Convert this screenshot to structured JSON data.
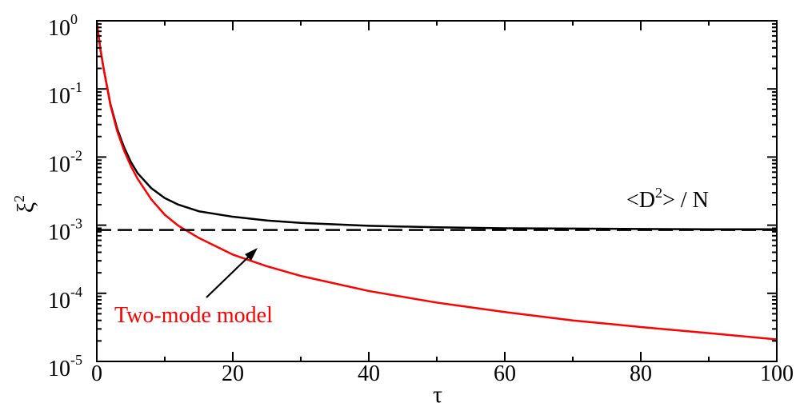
{
  "chart_data": {
    "type": "line",
    "xlabel": "τ",
    "ylabel_base": "ξ",
    "ylabel_sup": "2",
    "xlim": [
      0,
      100
    ],
    "ylim": [
      1e-05,
      1
    ],
    "yscale": "log",
    "grid": false,
    "x_ticks": [
      "0",
      "20",
      "40",
      "60",
      "80",
      "100"
    ],
    "y_ticks": [
      {
        "base": "10",
        "exp": "0"
      },
      {
        "base": "10",
        "exp": "-1"
      },
      {
        "base": "10",
        "exp": "-2"
      },
      {
        "base": "10",
        "exp": "-3"
      },
      {
        "base": "10",
        "exp": "-4"
      },
      {
        "base": "10",
        "exp": "-5"
      }
    ],
    "series": [
      {
        "key": "exact",
        "color": "#000000",
        "style": "solid",
        "x": [
          0,
          0.5,
          1,
          2,
          3,
          4,
          5,
          6,
          8,
          10,
          12,
          15,
          20,
          25,
          30,
          40,
          50,
          60,
          70,
          80,
          90,
          100
        ],
        "y": [
          0.95,
          0.4,
          0.2,
          0.06,
          0.026,
          0.014,
          0.0085,
          0.0058,
          0.0035,
          0.0025,
          0.002,
          0.0016,
          0.00133,
          0.00117,
          0.00108,
          0.00098,
          0.00093,
          0.0009,
          0.00089,
          0.00088,
          0.00087,
          0.00087
        ]
      },
      {
        "key": "two-mode",
        "color": "#ff0000",
        "style": "solid",
        "x": [
          0,
          0.5,
          1,
          2,
          3,
          4,
          5,
          6,
          8,
          10,
          12,
          15,
          20,
          25,
          30,
          40,
          50,
          60,
          70,
          80,
          90,
          100
        ],
        "y": [
          0.95,
          0.4,
          0.2,
          0.058,
          0.024,
          0.0125,
          0.0074,
          0.0048,
          0.0024,
          0.00142,
          0.00098,
          0.00065,
          0.00037,
          0.00025,
          0.00018,
          0.000108,
          7.3e-05,
          5.3e-05,
          4e-05,
          3.2e-05,
          2.6e-05,
          2.1e-05
        ]
      },
      {
        "key": "limit",
        "color": "#000000",
        "style": "dashed",
        "x": [
          0,
          100
        ],
        "y": [
          0.00085,
          0.00085
        ]
      }
    ],
    "annotations": [
      {
        "key": "limit-label",
        "text_pre": "<D",
        "text_sup": "2",
        "text_post": "> / N",
        "color": "#000000"
      },
      {
        "key": "two-mode-label",
        "text": "Two-mode model",
        "color": "#ff0000"
      }
    ]
  }
}
